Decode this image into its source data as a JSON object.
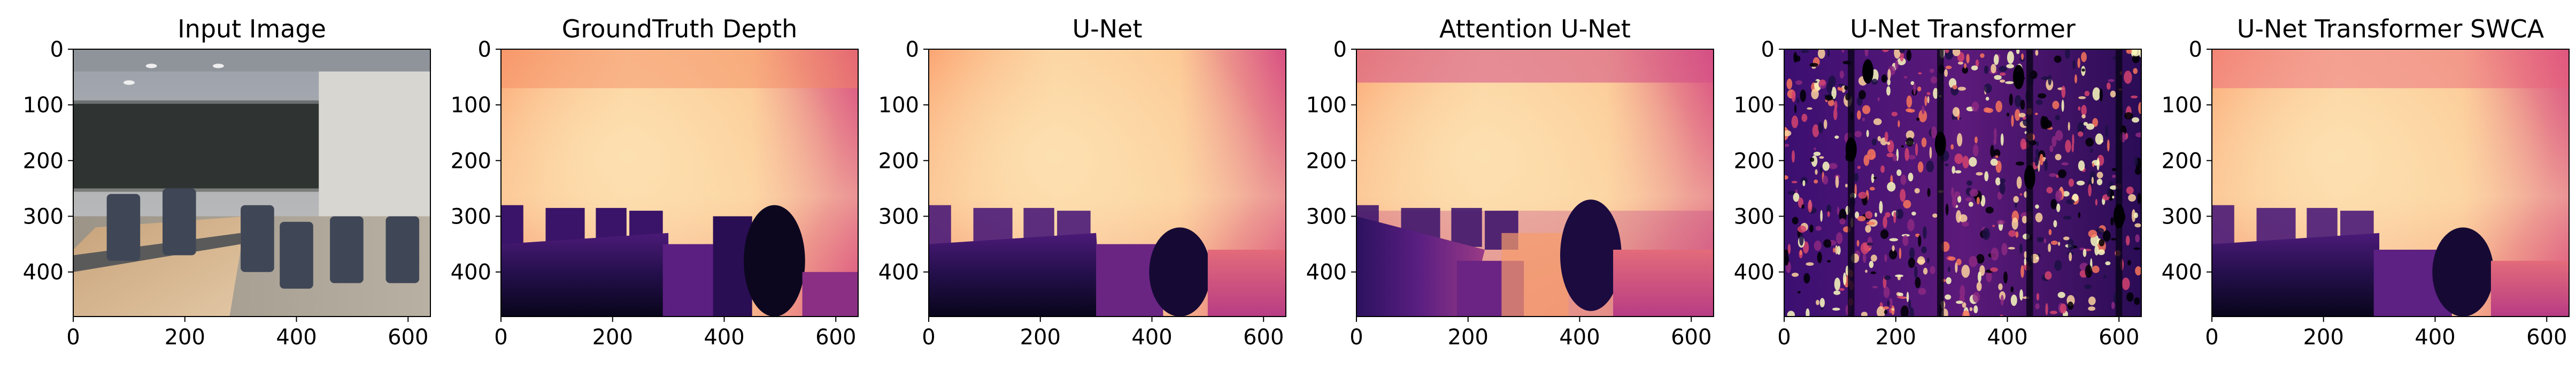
{
  "figure": {
    "panels": [
      {
        "title": "Input Image",
        "kind": "photo"
      },
      {
        "title": "GroundTruth Depth",
        "kind": "gt"
      },
      {
        "title": "U-Net",
        "kind": "unet"
      },
      {
        "title": "Attention U-Net",
        "kind": "attn"
      },
      {
        "title": "U-Net Transformer",
        "kind": "noise"
      },
      {
        "title": "U-Net Transformer SWCA",
        "kind": "swca"
      }
    ]
  },
  "chart_data": {
    "type": "heatmap",
    "colormap": "magma",
    "panel_titles": [
      "Input Image",
      "GroundTruth Depth",
      "U-Net",
      "Attention U-Net",
      "U-Net Transformer",
      "U-Net Transformer SWCA"
    ],
    "x_range": [
      0,
      640
    ],
    "y_range": [
      480,
      0
    ],
    "x_ticks": [
      0,
      200,
      400,
      600
    ],
    "y_ticks": [
      0,
      100,
      200,
      300,
      400
    ],
    "x_tick_labels": [
      "0",
      "200",
      "400",
      "600"
    ],
    "y_tick_labels": [
      "0",
      "100",
      "200",
      "300",
      "400"
    ],
    "grid": false
  }
}
